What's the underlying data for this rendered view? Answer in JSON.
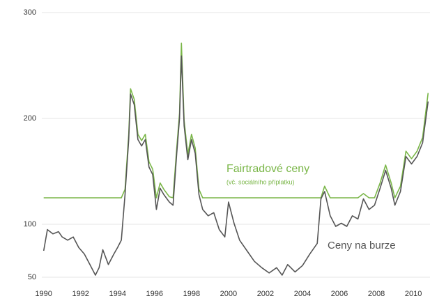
{
  "chart_data": {
    "type": "line",
    "annotations": [
      "Fairtradové ceny",
      "(vč. sociálního příplatku)",
      "Ceny na burze"
    ],
    "x": [
      1990.0,
      1990.2,
      1990.5,
      1990.8,
      1991.0,
      1991.3,
      1991.6,
      1991.9,
      1992.2,
      1992.5,
      1992.8,
      1993.0,
      1993.2,
      1993.5,
      1993.8,
      1994.0,
      1994.2,
      1994.4,
      1994.6,
      1994.7,
      1994.9,
      1995.1,
      1995.3,
      1995.5,
      1995.7,
      1995.9,
      1996.1,
      1996.3,
      1996.5,
      1996.8,
      1997.0,
      1997.2,
      1997.35,
      1997.45,
      1997.6,
      1997.8,
      1998.0,
      1998.2,
      1998.4,
      1998.6,
      1998.9,
      1999.2,
      1999.5,
      1999.8,
      2000.0,
      2000.3,
      2000.6,
      2001.0,
      2001.4,
      2001.8,
      2002.2,
      2002.6,
      2002.9,
      2003.2,
      2003.6,
      2004.0,
      2004.4,
      2004.8,
      2005.0,
      2005.2,
      2005.5,
      2005.8,
      2006.1,
      2006.4,
      2006.7,
      2007.0,
      2007.3,
      2007.6,
      2007.9,
      2008.2,
      2008.5,
      2008.8,
      2009.0,
      2009.3,
      2009.6,
      2009.9,
      2010.2,
      2010.5,
      2010.8
    ],
    "series": [
      {
        "name": "Fairtradové ceny",
        "color": "#7ab648",
        "values": [
          125,
          125,
          125,
          125,
          125,
          125,
          125,
          125,
          125,
          125,
          125,
          125,
          125,
          125,
          125,
          125,
          125,
          133,
          185,
          228,
          218,
          185,
          179,
          185,
          159,
          152,
          125,
          139,
          133,
          126,
          125,
          172,
          205,
          271,
          198,
          166,
          185,
          172,
          133,
          125,
          125,
          125,
          125,
          125,
          125,
          125,
          125,
          125,
          125,
          125,
          125,
          125,
          125,
          125,
          125,
          125,
          125,
          125,
          125,
          136,
          125,
          125,
          125,
          125,
          125,
          125,
          129,
          125,
          125,
          139,
          156,
          139,
          125,
          136,
          169,
          162,
          169,
          182,
          224
        ]
      },
      {
        "name": "Ceny na burze",
        "color": "#555555",
        "values": [
          75,
          95,
          91,
          93,
          88,
          85,
          88,
          78,
          72,
          62,
          52,
          59,
          76,
          62,
          72,
          78,
          85,
          128,
          180,
          223,
          213,
          180,
          174,
          180,
          154,
          147,
          114,
          134,
          128,
          121,
          118,
          167,
          200,
          259,
          193,
          161,
          180,
          167,
          128,
          114,
          108,
          111,
          95,
          88,
          121,
          101,
          85,
          75,
          65,
          59,
          54,
          59,
          52,
          62,
          55,
          61,
          72,
          82,
          124,
          131,
          108,
          98,
          101,
          98,
          108,
          105,
          124,
          114,
          118,
          134,
          151,
          134,
          118,
          131,
          164,
          157,
          164,
          177,
          216
        ]
      }
    ],
    "xlim": [
      1989.9,
      2010.9
    ],
    "xticks": [
      1990,
      1992,
      1994,
      1996,
      1998,
      2000,
      2002,
      2004,
      2006,
      2008,
      2010
    ],
    "ylim": [
      45,
      300
    ],
    "yticks": [
      50,
      100,
      200,
      300
    ],
    "grid": true
  }
}
